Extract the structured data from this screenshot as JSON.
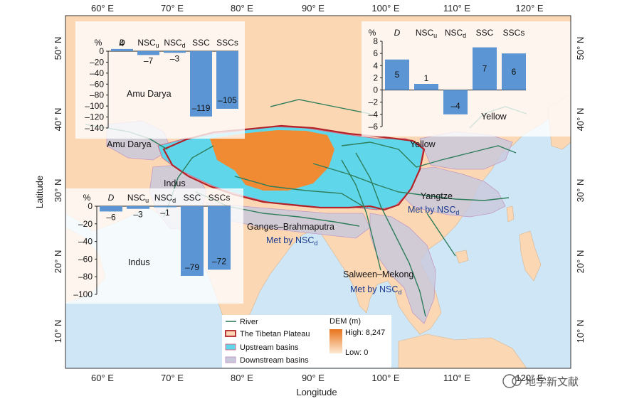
{
  "axes": {
    "xlabel": "Longitude",
    "ylabel": "Latitude",
    "x_ticks": [
      "60° E",
      "70° E",
      "80° E",
      "90° E",
      "100° E",
      "110° E",
      "120° E"
    ],
    "y_ticks": [
      "50° N",
      "40° N",
      "30° N",
      "20° N",
      "10° N"
    ]
  },
  "map_labels": {
    "amu_darya": "Amu Darya",
    "indus": "Indus",
    "yellow": "Yellow",
    "yangtze": "Yangtze",
    "ganges": "Ganges–Brahmaputra",
    "salween": "Salween–Mekong",
    "met_by": "Met by NSC",
    "met_sub": "d"
  },
  "legend": {
    "river": "River",
    "plateau": "The Tibetan Plateau",
    "upstream": "Upstream basins",
    "downstream": "Downstream basins",
    "dem_title": "DEM (m)",
    "dem_high": "High: 8,247",
    "dem_low": "Low: 0"
  },
  "watermark": "地学新文献",
  "insets": [
    {
      "id": "amu_darya",
      "title": "Amu Darya",
      "unit": "%",
      "categories": [
        {
          "main": "D",
          "sub": "",
          "italic": true
        },
        {
          "main": "NSC",
          "sub": "u",
          "italic": false
        },
        {
          "main": "NSC",
          "sub": "d",
          "italic": false
        },
        {
          "main": "SSC",
          "sub": "",
          "italic": false
        },
        {
          "main": "SSCs",
          "sub": "",
          "italic": false
        }
      ],
      "values": [
        4,
        -7,
        -3,
        -119,
        -105
      ],
      "value_labels": [
        "4",
        "–7",
        "–3",
        "–119",
        "–105"
      ],
      "y_ticks": [
        "0",
        "–20",
        "–40",
        "–60",
        "–80",
        "–100",
        "–120",
        "–140"
      ],
      "ylim": [
        -140,
        0
      ]
    },
    {
      "id": "yellow",
      "title": "Yellow",
      "unit": "%",
      "categories": [
        {
          "main": "D",
          "sub": "",
          "italic": true
        },
        {
          "main": "NSC",
          "sub": "u",
          "italic": false
        },
        {
          "main": "NSC",
          "sub": "d",
          "italic": false
        },
        {
          "main": "SSC",
          "sub": "",
          "italic": false
        },
        {
          "main": "SSCs",
          "sub": "",
          "italic": false
        }
      ],
      "values": [
        5,
        1,
        -4,
        7,
        6
      ],
      "value_labels": [
        "5",
        "1",
        "–4",
        "7",
        "6"
      ],
      "y_ticks": [
        "8",
        "6",
        "4",
        "2",
        "0",
        "–2",
        "–4",
        "–6"
      ],
      "ylim": [
        -6,
        8
      ]
    },
    {
      "id": "indus",
      "title": "Indus",
      "unit": "%",
      "categories": [
        {
          "main": "D",
          "sub": "",
          "italic": true
        },
        {
          "main": "NSC",
          "sub": "u",
          "italic": false
        },
        {
          "main": "NSC",
          "sub": "d",
          "italic": false
        },
        {
          "main": "SSC",
          "sub": "",
          "italic": false
        },
        {
          "main": "SSCs",
          "sub": "",
          "italic": false
        }
      ],
      "values": [
        -6,
        -3,
        -1,
        -79,
        -72
      ],
      "value_labels": [
        "–6",
        "–3",
        "–1",
        "–79",
        "–72"
      ],
      "y_ticks": [
        "0",
        "–20",
        "–40",
        "–60",
        "–80",
        "–100"
      ],
      "ylim": [
        -100,
        0
      ]
    }
  ],
  "chart_data": [
    {
      "type": "bar",
      "title": "Amu Darya",
      "ylabel": "%",
      "categories": [
        "D",
        "NSCu",
        "NSCd",
        "SSC",
        "SSCs"
      ],
      "values": [
        4,
        -7,
        -3,
        -119,
        -105
      ],
      "ylim": [
        -140,
        0
      ]
    },
    {
      "type": "bar",
      "title": "Yellow",
      "ylabel": "%",
      "categories": [
        "D",
        "NSCu",
        "NSCd",
        "SSC",
        "SSCs"
      ],
      "values": [
        5,
        1,
        -4,
        7,
        6
      ],
      "ylim": [
        -6,
        8
      ]
    },
    {
      "type": "bar",
      "title": "Indus",
      "ylabel": "%",
      "categories": [
        "D",
        "NSCu",
        "NSCd",
        "SSC",
        "SSCs"
      ],
      "values": [
        -6,
        -3,
        -1,
        -79,
        -72
      ],
      "ylim": [
        -100,
        0
      ]
    }
  ],
  "colors": {
    "ocean": "#cfe6f6",
    "land": "#fbd7b3",
    "plateau": "#f08a33",
    "upstream": "#5fd6ea",
    "downstream": "#c9c9dc",
    "river": "#2e7d5b",
    "plateau_border": "#b3242a",
    "bar": "#5b95d3"
  }
}
